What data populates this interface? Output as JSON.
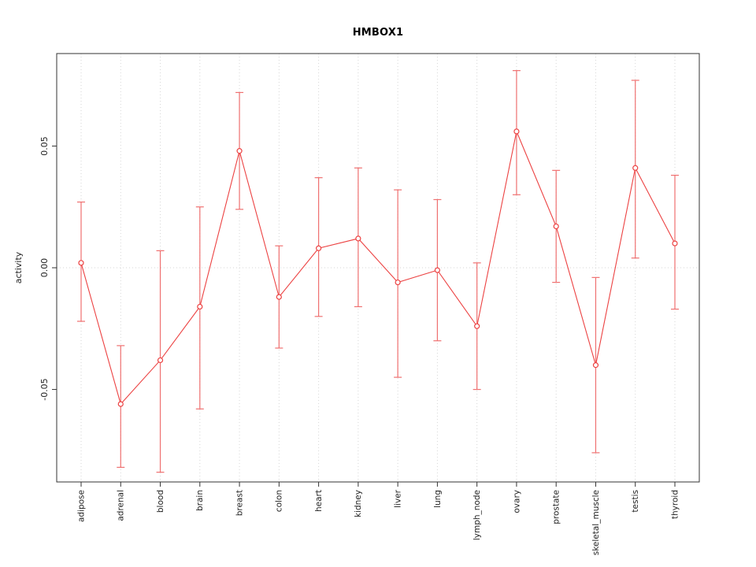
{
  "title": "HMBOX1",
  "colors": {
    "series": "#ec4242",
    "error": "#ef7070",
    "grid": "#d6d6d6",
    "axis": "#333333",
    "tick_text": "#222222"
  },
  "chart_data": {
    "type": "line",
    "title": "HMBOX1",
    "xlabel": "",
    "ylabel": "activity",
    "ylim": [
      -0.088,
      0.088
    ],
    "yticks": [
      -0.05,
      0.0,
      0.05
    ],
    "ytick_labels": [
      "-0.05",
      "0.00",
      "0.05"
    ],
    "grid": "vertical dotted per category, horizontal dotted at 0",
    "legend": "none",
    "categories": [
      "adipose",
      "adrenal",
      "blood",
      "brain",
      "breast",
      "colon",
      "heart",
      "kidney",
      "liver",
      "lung",
      "lymph_node",
      "ovary",
      "prostate",
      "skeletal_muscle",
      "testis",
      "thyroid"
    ],
    "series": [
      {
        "name": "activity",
        "values": [
          0.002,
          -0.056,
          -0.038,
          -0.016,
          0.048,
          -0.012,
          0.008,
          0.012,
          -0.006,
          -0.001,
          -0.024,
          0.056,
          0.017,
          -0.04,
          0.041,
          0.01
        ],
        "error_low": [
          -0.022,
          -0.082,
          -0.084,
          -0.058,
          0.024,
          -0.033,
          -0.02,
          -0.016,
          -0.045,
          -0.03,
          -0.05,
          0.03,
          -0.006,
          -0.076,
          0.004,
          -0.017
        ],
        "error_high": [
          0.027,
          -0.032,
          0.007,
          0.025,
          0.072,
          0.009,
          0.037,
          0.041,
          0.032,
          0.028,
          0.002,
          0.081,
          0.04,
          -0.004,
          0.077,
          0.038
        ]
      }
    ]
  }
}
